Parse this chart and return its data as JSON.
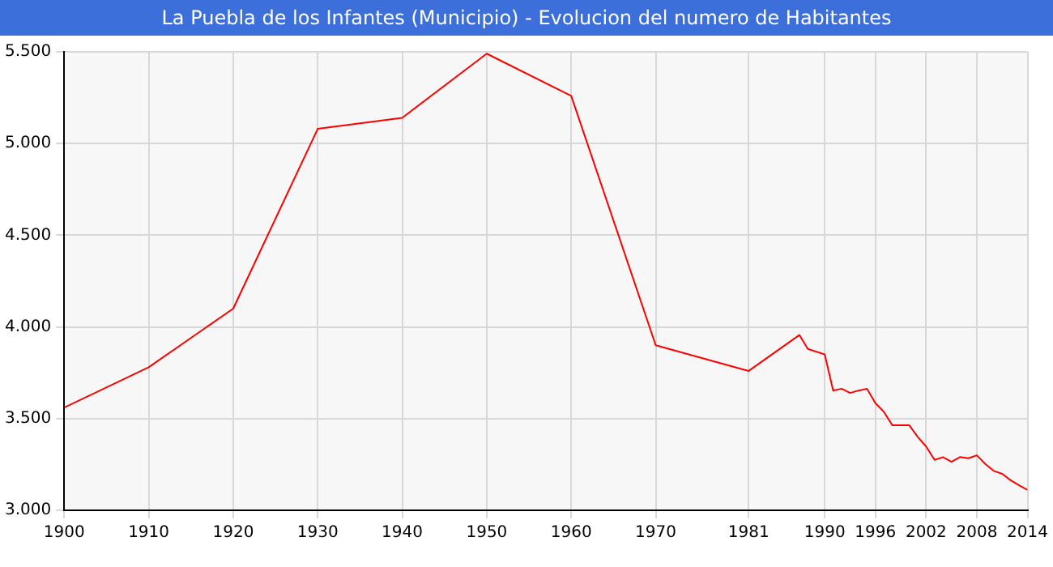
{
  "chart_data": {
    "type": "line",
    "title": "La Puebla de los Infantes (Municipio) - Evolucion del numero de Habitantes",
    "x": [
      1900,
      1910,
      1920,
      1930,
      1940,
      1950,
      1960,
      1970,
      1981,
      1987,
      1988,
      1990,
      1991,
      1992,
      1993,
      1994,
      1995,
      1996,
      1997,
      1998,
      1999,
      2000,
      2001,
      2002,
      2003,
      2004,
      2005,
      2006,
      2007,
      2008,
      2009,
      2010,
      2011,
      2012,
      2013,
      2014
    ],
    "series": [
      {
        "color": "#ff0000",
        "values": [
          3560,
          3780,
          4100,
          5080,
          5140,
          5490,
          5260,
          3900,
          3760,
          3956,
          3880,
          3850,
          3653,
          3663,
          3640,
          3653,
          3663,
          3584,
          3537,
          3464,
          3464,
          3464,
          3400,
          3348,
          3275,
          3290,
          3265,
          3290,
          3284,
          3300,
          3253,
          3215,
          3199,
          3164,
          3136,
          3111
        ]
      }
    ],
    "xlim": [
      1900,
      2014
    ],
    "xticks": [
      1900,
      1910,
      1920,
      1930,
      1940,
      1950,
      1960,
      1970,
      1981,
      1990,
      1996,
      2002,
      2008,
      2014
    ],
    "ylim": [
      3000,
      5500
    ],
    "yticks": [
      {
        "value": 3000,
        "label": "3.000"
      },
      {
        "value": 3500,
        "label": "3.500"
      },
      {
        "value": 4000,
        "label": "4.000"
      },
      {
        "value": 4500,
        "label": "4.500"
      },
      {
        "value": 5000,
        "label": "5.000"
      },
      {
        "value": 5500,
        "label": "5.500"
      }
    ],
    "grid": true,
    "legend": false,
    "marker": "none",
    "line_style": "solid"
  }
}
